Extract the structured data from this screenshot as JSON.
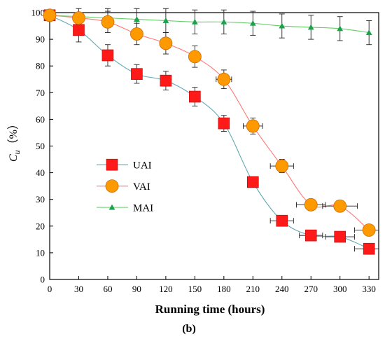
{
  "chart_data": {
    "type": "line",
    "caption": "(b)",
    "xlabel": "Running time (hours)",
    "ylabel_main": "C",
    "ylabel_sub": "u",
    "ylabel_unit": "（%）",
    "xlim": [
      0,
      340
    ],
    "ylim": [
      0,
      100
    ],
    "x_ticks": [
      "0",
      "30",
      "60",
      "90",
      "120",
      "150",
      "180",
      "210",
      "240",
      "270",
      "300",
      "330"
    ],
    "y_ticks": [
      "0",
      "10",
      "20",
      "30",
      "40",
      "50",
      "60",
      "70",
      "80",
      "90",
      "100"
    ],
    "grid": false,
    "legend_position": "center-left",
    "series": [
      {
        "name": "UAI",
        "marker": "square",
        "color": "#ff1a1a",
        "line_color": "#5fa8b5",
        "x": [
          0,
          30,
          60,
          90,
          120,
          150,
          180,
          210,
          240,
          270,
          300,
          330
        ],
        "y": [
          99,
          93.5,
          84,
          77,
          74.5,
          68.5,
          58.5,
          36.5,
          22,
          16.5,
          16,
          11.5
        ],
        "yerr": [
          1.5,
          4.5,
          4,
          3.5,
          3.5,
          3.5,
          3,
          1.5,
          1.5,
          1.5,
          1.5,
          1.5
        ],
        "xerr": [
          0,
          0,
          0,
          0,
          0,
          0,
          5,
          5,
          12,
          12,
          15,
          15
        ]
      },
      {
        "name": "VAI",
        "marker": "circle",
        "color": "#ff9900",
        "line_color": "#ff7777",
        "x": [
          0,
          30,
          60,
          90,
          120,
          150,
          180,
          210,
          240,
          270,
          300,
          330
        ],
        "y": [
          99,
          98,
          96.5,
          92,
          88.5,
          83.5,
          75,
          57.5,
          42.5,
          28,
          27.5,
          18.5
        ],
        "yerr": [
          1.5,
          1.5,
          4,
          4,
          4,
          4,
          3.5,
          3,
          2.5,
          1.5,
          1.5,
          1.5
        ],
        "xerr": [
          0,
          0,
          0,
          0,
          0,
          0,
          8,
          10,
          12,
          15,
          18,
          15
        ]
      },
      {
        "name": "MAI",
        "marker": "triangle",
        "color": "#1aa34a",
        "line_color": "#66cc66",
        "x": [
          0,
          30,
          60,
          90,
          120,
          150,
          180,
          210,
          240,
          270,
          300,
          330
        ],
        "y": [
          99,
          98.5,
          98,
          97.5,
          97,
          96.5,
          96.5,
          96,
          95,
          94.5,
          94,
          92.5
        ],
        "yerr": [
          1.5,
          3,
          3.5,
          4,
          4.5,
          4.5,
          4.5,
          4.5,
          4.5,
          4.5,
          4.5,
          4.5
        ],
        "xerr": [
          0,
          0,
          0,
          0,
          0,
          0,
          0,
          0,
          0,
          0,
          0,
          0
        ]
      }
    ]
  }
}
